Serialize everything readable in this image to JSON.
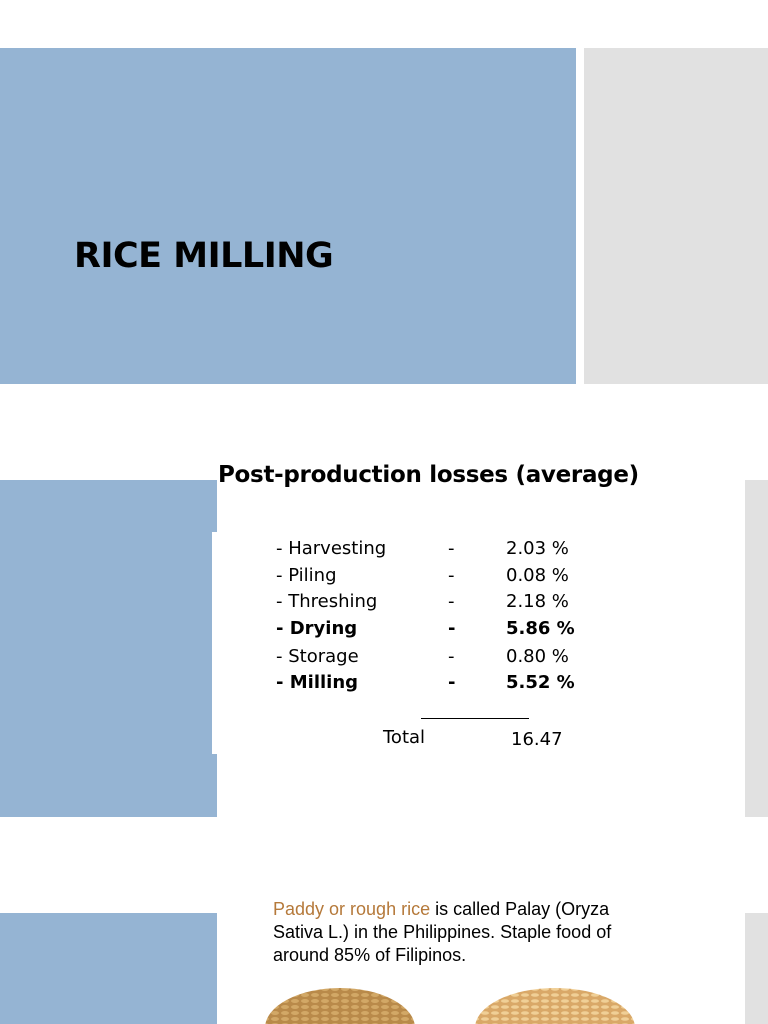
{
  "slide1": {
    "title": "RICE MILLING"
  },
  "slide2": {
    "title": "Post-production losses (average)",
    "rows": [
      {
        "label": "- Harvesting",
        "dash": "-",
        "value": "2.03 %"
      },
      {
        "label": "- Piling",
        "dash": "-",
        "value": "0.08 %"
      },
      {
        "label": "- Threshing",
        "dash": "-",
        "value": "2.18 %"
      },
      {
        "label": "- Drying",
        "dash": "-",
        "value": "5.86 %"
      },
      {
        "label": "- Storage",
        "dash": "-",
        "value": "0.80 %"
      },
      {
        "label": "- Milling",
        "dash": "-",
        "value": "5.52 %"
      }
    ],
    "total_label": "Total",
    "total_value": "16.47"
  },
  "slide3": {
    "highlight": "Paddy or rough rice",
    "text": " is called Palay (Oryza Sativa L.) in the Philippines. Staple food of around 85% of Filipinos."
  }
}
